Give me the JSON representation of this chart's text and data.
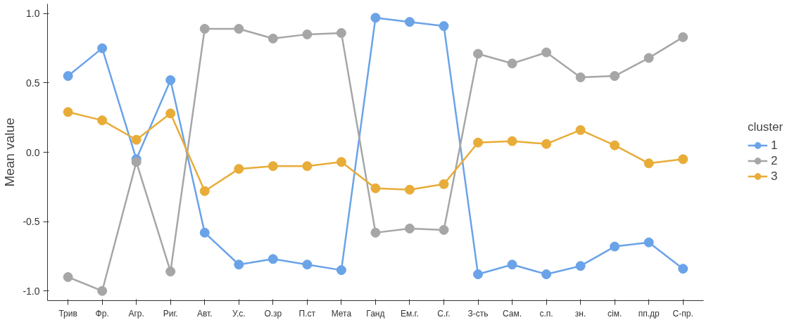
{
  "chart_data": {
    "type": "line",
    "ylabel": "Mean value",
    "legend_title": "cluster",
    "categories": [
      "Трив",
      "Фр.",
      "Агр.",
      "Риг.",
      "Авт.",
      "У.с.",
      "О.зр",
      "П.ст",
      "Мета",
      "Ганд",
      "Ем.г.",
      "С.г.",
      "З-сть",
      "Сам.",
      "с.п.",
      "зн.",
      "сім.",
      "пп.др",
      "С-пр."
    ],
    "series": [
      {
        "name": "1",
        "color": "#6aa3e8",
        "values": [
          0.55,
          0.75,
          -0.05,
          0.52,
          -0.58,
          -0.81,
          -0.77,
          -0.81,
          -0.85,
          0.97,
          0.94,
          0.91,
          -0.88,
          -0.81,
          -0.88,
          -0.82,
          -0.68,
          -0.65,
          -0.84
        ]
      },
      {
        "name": "2",
        "color": "#a6a6a6",
        "values": [
          -0.9,
          -1.0,
          -0.07,
          -0.86,
          0.89,
          0.89,
          0.82,
          0.85,
          0.86,
          -0.58,
          -0.55,
          -0.56,
          0.71,
          0.64,
          0.72,
          0.54,
          0.55,
          0.68,
          0.83
        ]
      },
      {
        "name": "3",
        "color": "#e8ac38",
        "values": [
          0.29,
          0.23,
          0.09,
          0.28,
          -0.28,
          -0.12,
          -0.1,
          -0.1,
          -0.07,
          -0.26,
          -0.27,
          -0.23,
          0.07,
          0.08,
          0.06,
          0.16,
          0.05,
          -0.08,
          -0.05
        ]
      }
    ],
    "ylim": [
      -1.07,
      1.07
    ],
    "yticks": [
      {
        "value": -1.0,
        "label": "-1.0"
      },
      {
        "value": -0.5,
        "label": "-0.5"
      },
      {
        "value": 0.0,
        "label": "0.0"
      },
      {
        "value": 0.5,
        "label": "0.5"
      },
      {
        "value": 1.0,
        "label": "1.0"
      }
    ],
    "grid": false,
    "legend": "right",
    "marker": "circle",
    "line_style": "solid"
  }
}
